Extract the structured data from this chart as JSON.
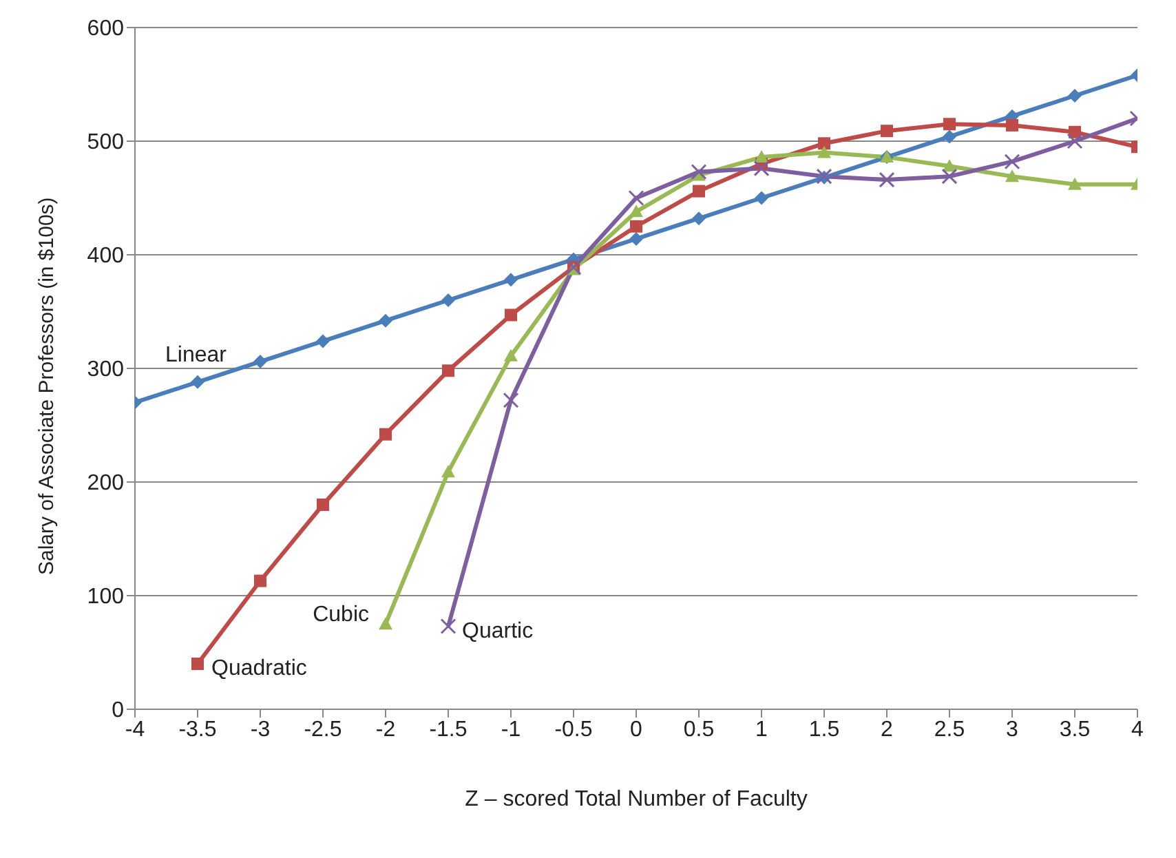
{
  "chart_data": {
    "type": "line",
    "xlabel": "Z – scored Total Number of Faculty",
    "ylabel": "Salary of Associate Professors (in $100s)",
    "x": [
      -4,
      -3.5,
      -3,
      -2.5,
      -2,
      -1.5,
      -1,
      -0.5,
      0,
      0.5,
      1,
      1.5,
      2,
      2.5,
      3,
      3.5,
      4
    ],
    "series": [
      {
        "name": "Linear",
        "color": "#4a7ebb",
        "marker": "diamond",
        "values": [
          270,
          288,
          306,
          324,
          342,
          360,
          378,
          396,
          414,
          432,
          450,
          468,
          486,
          504,
          522,
          540,
          558
        ]
      },
      {
        "name": "Quadratic",
        "color": "#be4b48",
        "marker": "square",
        "values": [
          null,
          40,
          113,
          180,
          242,
          298,
          347,
          389,
          425,
          456,
          480,
          498,
          509,
          515,
          514,
          508,
          495
        ]
      },
      {
        "name": "Cubic",
        "color": "#98b954",
        "marker": "triangle",
        "values": [
          null,
          null,
          null,
          null,
          75,
          209,
          311,
          387,
          438,
          470,
          486,
          490,
          486,
          478,
          469,
          462,
          462
        ]
      },
      {
        "name": "Quartic",
        "color": "#7d5fa0",
        "marker": "cross",
        "values": [
          null,
          null,
          null,
          null,
          null,
          73,
          272,
          389,
          450,
          473,
          476,
          469,
          466,
          469,
          482,
          500,
          520
        ]
      }
    ],
    "xlim": [
      -4,
      4
    ],
    "xticks": [
      -4,
      -3.5,
      -3,
      -2.5,
      -2,
      -1.5,
      -1,
      -0.5,
      0,
      0.5,
      1,
      1.5,
      2,
      2.5,
      3,
      3.5,
      4
    ],
    "ylim": [
      0,
      600
    ],
    "yticks": [
      0,
      100,
      200,
      300,
      400,
      500,
      600
    ],
    "grid": "y",
    "legend": false
  }
}
